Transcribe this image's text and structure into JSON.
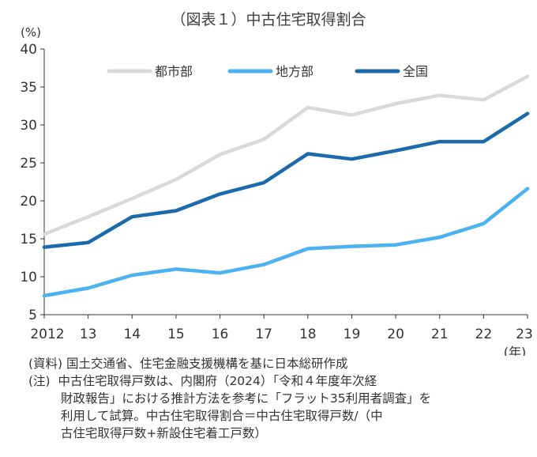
{
  "title": "（図表１）中古住宅取得割合",
  "chart_data": {
    "type": "line",
    "title": "（図表１）中古住宅取得割合",
    "y_unit": "(%)",
    "x_unit": "(年)",
    "x": [
      "2012",
      "13",
      "14",
      "15",
      "16",
      "17",
      "18",
      "19",
      "20",
      "21",
      "22",
      "23"
    ],
    "ylim": [
      5,
      40
    ],
    "yticks": [
      5,
      10,
      15,
      20,
      25,
      30,
      35,
      40
    ],
    "grid": false,
    "legend_position": "top",
    "series": [
      {
        "name": "都市部",
        "color": "#d9d9d9",
        "values": [
          15.6,
          17.9,
          20.3,
          22.8,
          26.1,
          28.1,
          32.3,
          31.3,
          32.8,
          33.9,
          33.3,
          36.4
        ]
      },
      {
        "name": "地方部",
        "color": "#4cb1ef",
        "values": [
          7.5,
          8.5,
          10.2,
          11.0,
          10.5,
          11.6,
          13.7,
          14.0,
          14.2,
          15.2,
          17.0,
          21.6
        ]
      },
      {
        "name": "全国",
        "color": "#1b6aab",
        "values": [
          13.9,
          14.5,
          17.9,
          18.7,
          20.9,
          22.4,
          26.2,
          25.5,
          26.6,
          27.8,
          27.8,
          31.5
        ]
      }
    ]
  },
  "notes": [
    "(資料) 国土交通省、住宅金融支援機構を基に日本総研作成",
    "(注)  中古住宅取得戸数は、内閣府（2024）「令和４年度年次経",
    "　　  財政報告」における推計方法を参考に「フラット35利用者調査」を",
    "　　  利用して試算。中古住宅取得割合＝中古住宅取得戸数/（中",
    "　　  古住宅取得戸数+新設住宅着工戸数）"
  ]
}
